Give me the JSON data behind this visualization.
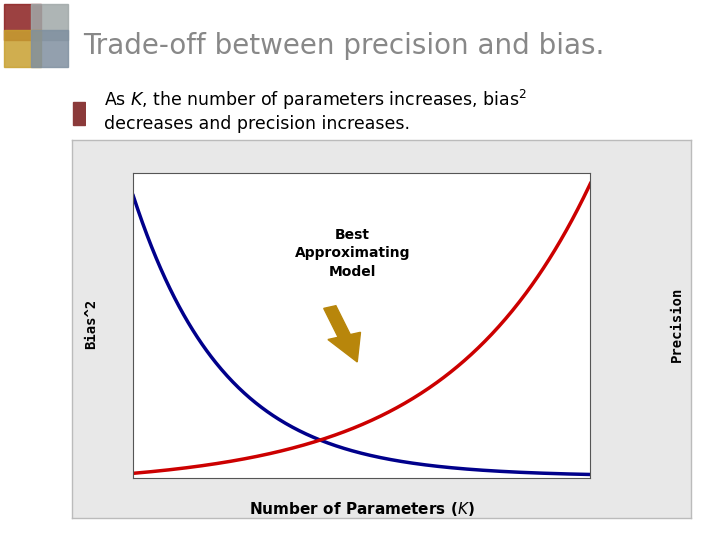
{
  "title": "Trade-off between precision and bias.",
  "title_fontsize": 20,
  "title_color": "#888888",
  "bullet_text_line1": "As $K$, the number of parameters increases, bias$^2$",
  "bullet_text_line2": "decreases and precision increases.",
  "xlabel": "Number of Parameters ($K$)",
  "ylabel_left": "Bias^2",
  "ylabel_right": "Precision",
  "annotation_text": "Best\nApproximating\nModel",
  "bias_color": "#00008B",
  "precision_color": "#CC0000",
  "arrow_color": "#B8860B",
  "background_color": "#FFFFFF",
  "plot_bg_color": "#FFFFFF",
  "outer_box_color": "#E8E8E8",
  "bullet_color": "#8B3A3A",
  "logo_colors": [
    [
      "#8B2020",
      "#A0A8A8"
    ],
    [
      "#C8A030",
      "#8090A0"
    ]
  ]
}
